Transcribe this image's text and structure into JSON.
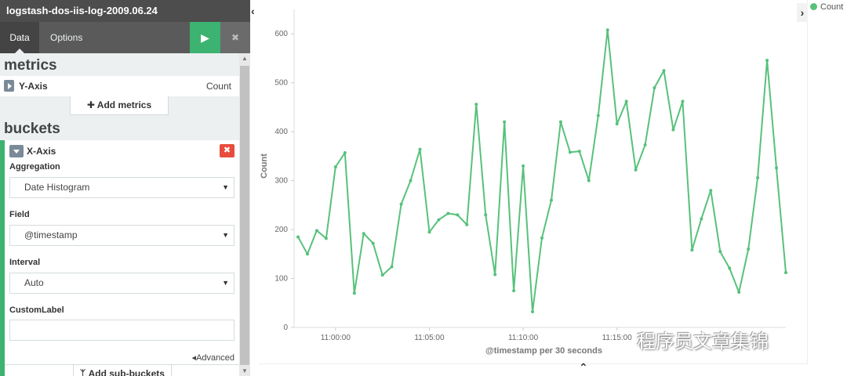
{
  "sidebar": {
    "title": "logstash-dos-iis-log-2009.06.24",
    "tabs": [
      {
        "label": "Data"
      },
      {
        "label": "Options"
      }
    ],
    "apply_icon": "play-icon",
    "discard_icon": "close-icon",
    "metrics": {
      "title": "metrics",
      "yaxis": {
        "label": "Y-Axis",
        "aggregation": "Count"
      },
      "add_label": "Add metrics"
    },
    "buckets": {
      "title": "buckets",
      "xaxis": {
        "label": "X-Axis",
        "aggregation_label": "Aggregation",
        "aggregation_value": "Date Histogram",
        "field_label": "Field",
        "field_value": "@timestamp",
        "interval_label": "Interval",
        "interval_value": "Auto",
        "custom_label_label": "CustomLabel",
        "custom_label_value": "",
        "advanced_label": "Advanced"
      },
      "add_label": "Add sub-buckets"
    }
  },
  "legend": {
    "series_name": "Count",
    "color": "#57c17b"
  },
  "watermark": "程序员文章集锦",
  "chart_data": {
    "type": "line",
    "title": "",
    "xlabel": "@timestamp per 30 seconds",
    "ylabel": "Count",
    "ylim": [
      0,
      650
    ],
    "yticks": [
      0,
      100,
      200,
      300,
      400,
      500,
      600
    ],
    "xticks": [
      "11:00:00",
      "11:05:00",
      "11:10:00",
      "11:15:00"
    ],
    "x_start": "10:58:00",
    "x_step_seconds": 30,
    "grid": false,
    "legend_position": "top-right",
    "series": [
      {
        "name": "Count",
        "color": "#57c17b",
        "values": [
          185,
          150,
          198,
          182,
          328,
          357,
          70,
          192,
          172,
          107,
          124,
          252,
          300,
          364,
          195,
          220,
          233,
          230,
          210,
          456,
          230,
          108,
          420,
          75,
          330,
          32,
          183,
          260,
          420,
          358,
          360,
          300,
          433,
          608,
          416,
          462,
          322,
          373,
          490,
          525,
          404,
          462,
          158,
          222,
          280,
          155,
          121,
          72,
          160,
          306,
          546,
          326,
          112
        ]
      }
    ]
  }
}
